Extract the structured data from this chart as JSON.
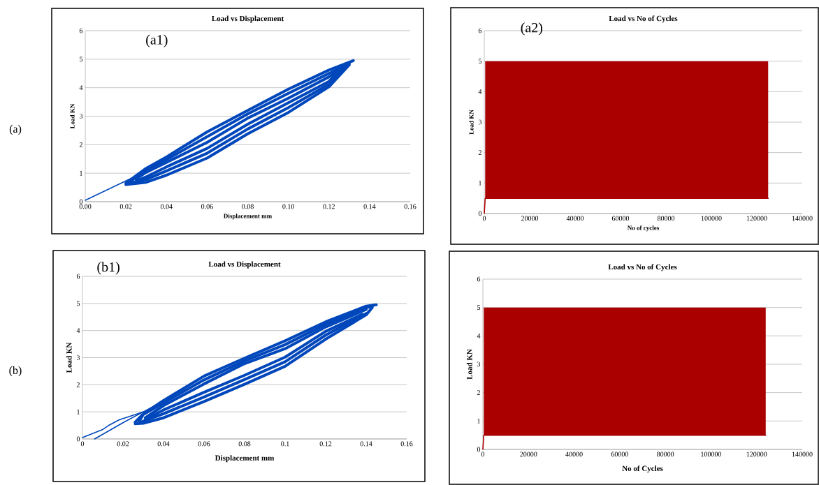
{
  "chart_data": [
    {
      "type": "line",
      "title": "Load vs Displacement",
      "xlabel": "Displacement mm",
      "ylabel": "Load KN",
      "annotations": [
        "(a1)",
        "(a)"
      ],
      "grid": "y",
      "xlim": [
        0,
        0.16
      ],
      "ylim": [
        0,
        6
      ],
      "xticks": [
        {
          "value": 0,
          "label": "0.00"
        },
        0.02,
        0.04,
        0.06,
        0.08,
        {
          "value": 0.1,
          "label": "0.10"
        },
        0.12,
        0.14,
        0.16
      ],
      "yticks": [
        0,
        1,
        2,
        3,
        4,
        5,
        6
      ],
      "series": [
        {
          "color": "#0047bb",
          "x": [
            0,
            0.025
          ],
          "values": [
            0.05,
            0.9
          ]
        },
        {
          "color": "#0047bb",
          "x": [
            0.02,
            0.03,
            0.04,
            0.06,
            0.08,
            0.1,
            0.12,
            0.132
          ],
          "values": [
            0.65,
            1.17,
            1.57,
            2.45,
            3.2,
            3.95,
            4.62,
            4.95
          ]
        },
        {
          "color": "#0047bb",
          "x": [
            0.022,
            0.03,
            0.04,
            0.06,
            0.08,
            0.1,
            0.12,
            0.13
          ],
          "values": [
            0.7,
            1.1,
            1.48,
            2.28,
            3.08,
            3.8,
            4.5,
            4.85
          ]
        },
        {
          "color": "#0047bb",
          "x": [
            0.025,
            0.03,
            0.04,
            0.06,
            0.08,
            0.1,
            0.12,
            0.128
          ],
          "values": [
            0.8,
            1.03,
            1.38,
            2.08,
            2.93,
            3.63,
            4.38,
            4.75
          ]
        },
        {
          "color": "#0047bb",
          "x": [
            0.02,
            0.03,
            0.04,
            0.06,
            0.08,
            0.1,
            0.12,
            0.13
          ],
          "values": [
            0.6,
            0.68,
            0.93,
            1.53,
            2.38,
            3.13,
            4.03,
            4.8
          ]
        },
        {
          "color": "#0047bb",
          "x": [
            0.022,
            0.03,
            0.04,
            0.06,
            0.08,
            0.1,
            0.12,
            0.128
          ],
          "values": [
            0.65,
            0.78,
            1.08,
            1.7,
            2.55,
            3.3,
            4.12,
            4.75
          ]
        },
        {
          "color": "#0047bb",
          "x": [
            0.025,
            0.03,
            0.04,
            0.06,
            0.08,
            0.1,
            0.12,
            0.126
          ],
          "values": [
            0.72,
            0.87,
            1.22,
            1.87,
            2.72,
            3.47,
            4.22,
            4.68
          ]
        }
      ]
    },
    {
      "type": "line",
      "title": "Load vs No of Cycles",
      "xlabel": "No of cycles",
      "ylabel": "Load KN",
      "annotations": [
        "(a2)"
      ],
      "grid": "y",
      "xlim": [
        0,
        140000
      ],
      "ylim": [
        0,
        6
      ],
      "xticks": [
        0,
        20000,
        40000,
        60000,
        80000,
        100000,
        120000,
        140000
      ],
      "yticks": [
        0,
        1,
        2,
        3,
        4,
        5,
        6
      ],
      "series": [
        {
          "color": "#aa0000",
          "x": [
            0,
            400,
            125000
          ],
          "values": [
            0,
            0.5,
            0.5
          ],
          "lower": [
            null,
            0.5,
            0.5
          ],
          "upper": [
            null,
            5,
            5
          ]
        }
      ]
    },
    {
      "type": "line",
      "title": "Load vs Displacement",
      "xlabel": "Displacement mm",
      "ylabel": "Load KN",
      "annotations": [
        "(b1)",
        "(b)"
      ],
      "grid": "y",
      "xlim": [
        0,
        0.16
      ],
      "ylim": [
        0,
        6
      ],
      "xticks": [
        0,
        0.02,
        0.04,
        0.06,
        0.08,
        0.1,
        0.12,
        0.14,
        0.16
      ],
      "yticks": [
        0,
        1,
        2,
        3,
        4,
        5,
        6
      ],
      "series": [
        {
          "color": "#0047bb",
          "x": [
            0,
            0.01,
            0.013,
            0.018,
            0.03
          ],
          "values": [
            0.05,
            0.35,
            0.5,
            0.7,
            1.0
          ]
        },
        {
          "color": "#0047bb",
          "x": [
            0.006,
            0.02,
            0.035
          ],
          "values": [
            0,
            0.6,
            1.2
          ]
        },
        {
          "color": "#0047bb",
          "x": [
            0.026,
            0.03,
            0.04,
            0.06,
            0.08,
            0.1,
            0.12,
            0.14,
            0.145
          ],
          "values": [
            0.62,
            0.92,
            1.42,
            2.32,
            2.98,
            3.62,
            4.32,
            4.9,
            4.95
          ]
        },
        {
          "color": "#0047bb",
          "x": [
            0.028,
            0.03,
            0.04,
            0.06,
            0.08,
            0.1,
            0.12,
            0.14,
            0.143
          ],
          "values": [
            0.65,
            0.9,
            1.33,
            2.18,
            2.88,
            3.48,
            4.23,
            4.84,
            4.9
          ]
        },
        {
          "color": "#0047bb",
          "x": [
            0.031,
            0.04,
            0.06,
            0.08,
            0.1,
            0.12,
            0.14
          ],
          "values": [
            0.78,
            1.23,
            2.03,
            2.78,
            3.33,
            4.13,
            4.78
          ]
        },
        {
          "color": "#0047bb",
          "x": [
            0.026,
            0.03,
            0.04,
            0.06,
            0.08,
            0.1,
            0.12,
            0.14,
            0.143
          ],
          "values": [
            0.56,
            0.58,
            0.78,
            1.38,
            2.02,
            2.68,
            3.68,
            4.58,
            4.85
          ]
        },
        {
          "color": "#0047bb",
          "x": [
            0.028,
            0.03,
            0.04,
            0.06,
            0.08,
            0.1,
            0.12,
            0.14
          ],
          "values": [
            0.6,
            0.65,
            0.93,
            1.55,
            2.19,
            2.85,
            3.83,
            4.63
          ]
        },
        {
          "color": "#0047bb",
          "x": [
            0.031,
            0.04,
            0.06,
            0.08,
            0.1,
            0.12,
            0.138
          ],
          "values": [
            0.72,
            1.07,
            1.72,
            2.35,
            3.02,
            3.97,
            4.6
          ]
        }
      ]
    },
    {
      "type": "line",
      "title": "Load vs No of Cycles",
      "xlabel": "No of Cycles",
      "ylabel": "Load KN",
      "grid": "y",
      "xlim": [
        0,
        140000
      ],
      "ylim": [
        0,
        6
      ],
      "xticks": [
        0,
        20000,
        40000,
        60000,
        80000,
        100000,
        120000,
        140000
      ],
      "yticks": [
        0,
        1,
        2,
        3,
        4,
        5,
        6
      ],
      "series": [
        {
          "color": "#aa0000",
          "x": [
            0,
            400,
            124000
          ],
          "values": [
            0,
            0.5,
            0.5
          ],
          "lower": [
            null,
            0.5,
            0.5
          ],
          "upper": [
            null,
            5,
            5
          ]
        }
      ]
    }
  ]
}
